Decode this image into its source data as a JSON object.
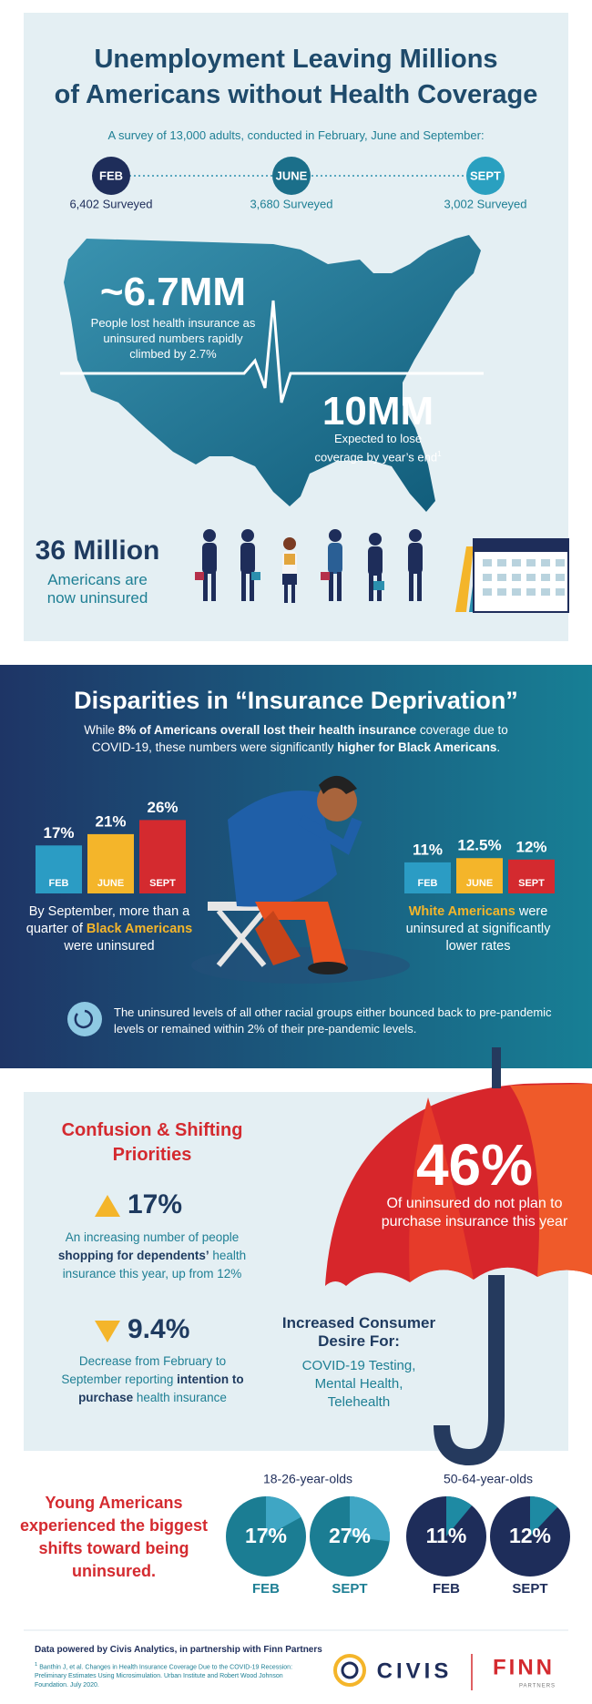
{
  "header": {
    "title": [
      "Unemployment Leaving Millions",
      "of Americans without Health Coverage"
    ],
    "subtitle": "A survey of 13,000 adults, conducted in February, June and September:",
    "timeline": [
      {
        "month": "FEB",
        "surveyed": "6,402 Surveyed"
      },
      {
        "month": "JUNE",
        "surveyed": "3,680 Surveyed"
      },
      {
        "month": "SEPT",
        "surveyed": "3,002 Surveyed"
      }
    ]
  },
  "map": {
    "lost": {
      "figure": "~6.7MM",
      "text": "People lost health insurance as uninsured numbers rapidly climbed by 2.7%"
    },
    "expected": {
      "figure": "10MM",
      "text": "Expected to lose coverage by year’s end",
      "note": "1"
    }
  },
  "uninsured": {
    "figure": "36 Million",
    "text": "Americans are now uninsured"
  },
  "disparities": {
    "title": "Disparities in “Insurance Deprivation”",
    "intro": [
      "While ",
      "8% of Americans overall lost their health insurance",
      " coverage due to COVID-19, these numbers were significantly ",
      "higher for Black Americans",
      "."
    ],
    "black": {
      "categories": [
        "FEB",
        "JUNE",
        "SEPT"
      ],
      "values": [
        17,
        21,
        26
      ],
      "value_labels": [
        "17%",
        "21%",
        "26%"
      ],
      "colors": [
        "#2b9cc4",
        "#f4b52a",
        "#d42a2f"
      ],
      "caption": [
        "By September, more than a quarter of ",
        "Black Americans",
        " were uninsured"
      ]
    },
    "white": {
      "categories": [
        "FEB",
        "JUNE",
        "SEPT"
      ],
      "values": [
        11,
        12.5,
        12
      ],
      "value_labels": [
        "11%",
        "12.5%",
        "12%"
      ],
      "colors": [
        "#2b9cc4",
        "#f4b52a",
        "#d42a2f"
      ],
      "caption": [
        "White Americans",
        " were uninsured at significantly lower rates"
      ]
    },
    "note": "The uninsured levels of all other racial groups either bounced back to pre-pandemic levels or remained within 2% of their pre-pandemic levels."
  },
  "confusion": {
    "title": "Confusion & Shifting Priorities",
    "increase": {
      "figure": "17%",
      "text": [
        "An increasing number of people ",
        "shopping for dependents’",
        " health insurance this year, up from 12%"
      ]
    },
    "decrease": {
      "figure": "9.4%",
      "text": [
        "Decrease from February to September reporting ",
        "intention to purchase",
        " health insurance"
      ]
    },
    "umbrella": {
      "figure": "46%",
      "text": "Of uninsured do not plan to purchase insurance this year"
    },
    "desire": {
      "title": "Increased Consumer Desire For:",
      "items": "COVID-19 Testing, Mental Health, Telehealth"
    }
  },
  "young": {
    "headline": "Young Americans experienced the biggest shifts toward being uninsured.",
    "groups": [
      {
        "name": "18-26-year-olds",
        "categories": [
          "FEB",
          "SEPT"
        ],
        "values": [
          17,
          27
        ],
        "value_labels": [
          "17%",
          "27%"
        ],
        "color": "#1b7d93",
        "wedge_color": "#3fa6c4"
      },
      {
        "name": "50-64-year-olds",
        "categories": [
          "FEB",
          "SEPT"
        ],
        "values": [
          11,
          12
        ],
        "value_labels": [
          "11%",
          "12%"
        ],
        "color": "#1e2d5a",
        "wedge_color": "#1e8aa3"
      }
    ]
  },
  "footer": {
    "credit": "Data powered by Civis Analytics, in partnership with Finn Partners",
    "footnote": {
      "marker": "1",
      "text": "Banthin J, et al. Changes in Health Insurance Coverage Due to the COVID-19 Recession: Preliminary Estimates Using Microsimulation. Urban Institute and Robert Wood Johnson Foundation. July 2020."
    },
    "logos": [
      "CIVIS",
      "FINN",
      "PARTNERS"
    ]
  }
}
